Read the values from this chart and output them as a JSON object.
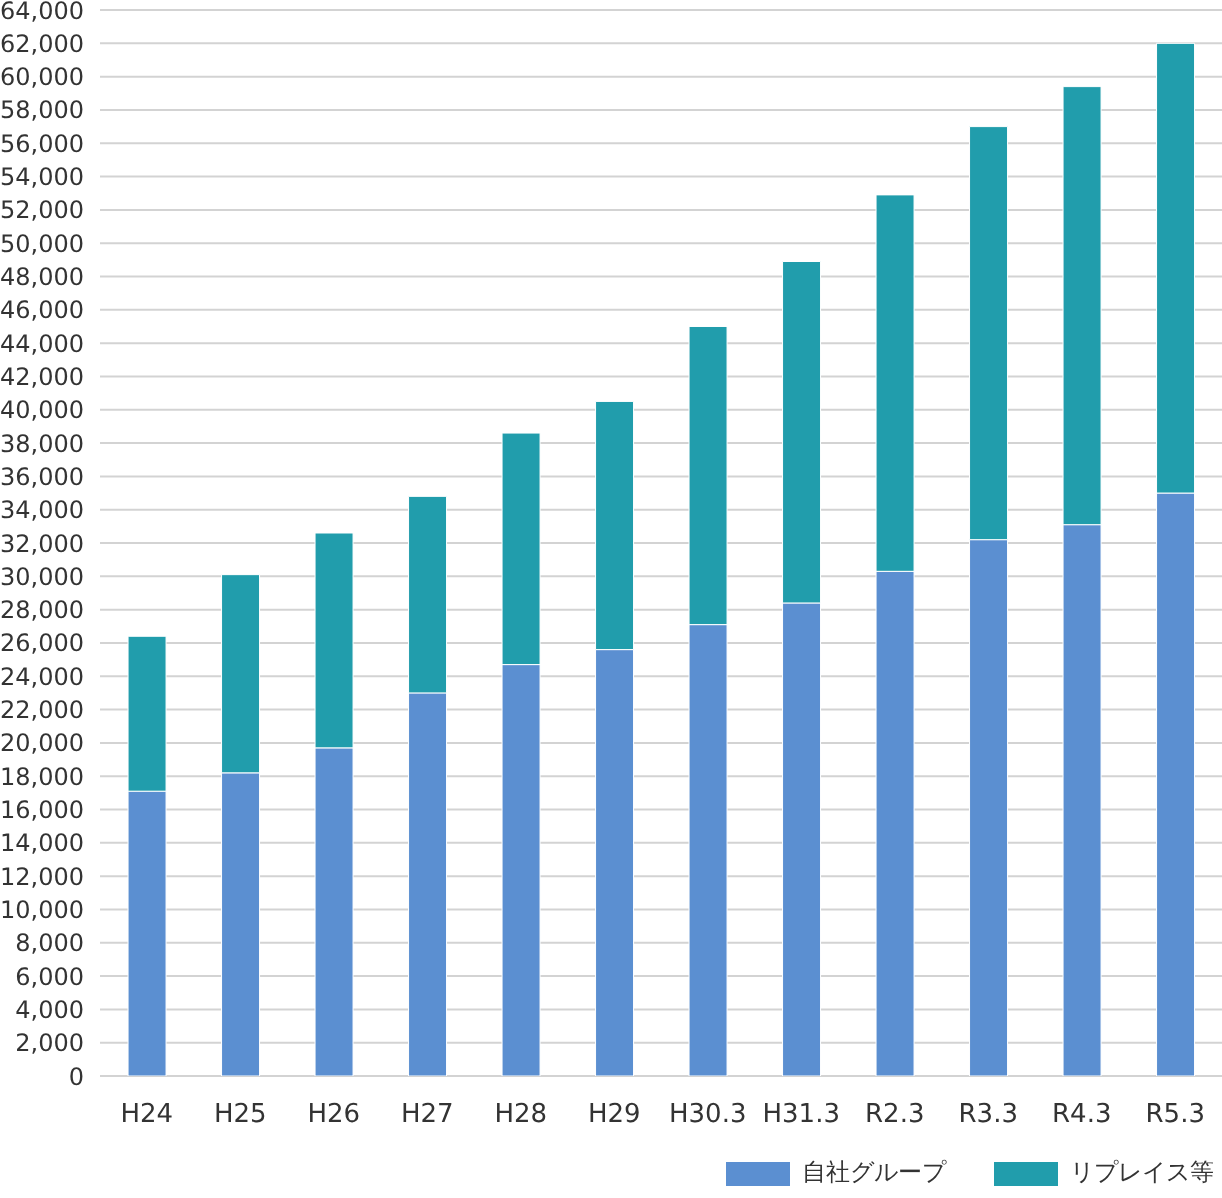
{
  "chart_data": {
    "type": "bar",
    "stacked": true,
    "categories": [
      "H24",
      "H25",
      "H26",
      "H27",
      "H28",
      "H29",
      "H30.3",
      "H31.3",
      "R2.3",
      "R3.3",
      "R4.3",
      "R5.3"
    ],
    "series": [
      {
        "name": "自社グループ",
        "color": "#5b8fd1",
        "values": [
          17100,
          18200,
          19700,
          23000,
          24700,
          25600,
          27100,
          28400,
          30300,
          32200,
          33100,
          35000
        ]
      },
      {
        "name": "リプレイス等",
        "color": "#219dac",
        "values": [
          9300,
          11900,
          12900,
          11800,
          13900,
          14900,
          17900,
          20500,
          22600,
          24800,
          26300,
          27000
        ]
      }
    ],
    "ylim": [
      0,
      64000
    ],
    "yticks": [
      0,
      {
        "value": 2000,
        "label": "2,000"
      },
      {
        "value": 4000,
        "label": "4,000"
      },
      {
        "value": 6000,
        "label": "6,000"
      },
      {
        "value": 8000,
        "label": "8,000"
      },
      {
        "value": 10000,
        "label": "10,000"
      },
      {
        "value": 12000,
        "label": "12,000"
      },
      {
        "value": 14000,
        "label": "14,000"
      },
      {
        "value": 16000,
        "label": "16,000"
      },
      {
        "value": 18000,
        "label": "18,000"
      },
      {
        "value": 20000,
        "label": "20,000"
      },
      {
        "value": 22000,
        "label": "22,000"
      },
      {
        "value": 24000,
        "label": "24,000"
      },
      {
        "value": 26000,
        "label": "26,000"
      },
      {
        "value": 28000,
        "label": "28,000"
      },
      {
        "value": 30000,
        "label": "30,000"
      },
      {
        "value": 32000,
        "label": "32,000"
      },
      {
        "value": 34000,
        "label": "34,000"
      },
      {
        "value": 36000,
        "label": "36,000"
      },
      {
        "value": 38000,
        "label": "38,000"
      },
      {
        "value": 40000,
        "label": "40,000"
      },
      {
        "value": 42000,
        "label": "42,000"
      },
      {
        "value": 44000,
        "label": "44,000"
      },
      {
        "value": 46000,
        "label": "46,000"
      },
      {
        "value": 48000,
        "label": "48,000"
      },
      {
        "value": 50000,
        "label": "50,000"
      },
      {
        "value": 52000,
        "label": "52,000"
      },
      {
        "value": 54000,
        "label": "54,000"
      },
      {
        "value": 56000,
        "label": "56,000"
      },
      {
        "value": 58000,
        "label": "58,000"
      },
      {
        "value": 60000,
        "label": "60,000"
      },
      {
        "value": 62000,
        "label": "62,000"
      },
      {
        "value": 64000,
        "label": "64,000"
      }
    ],
    "grid": "y",
    "legend": "bottom right"
  }
}
